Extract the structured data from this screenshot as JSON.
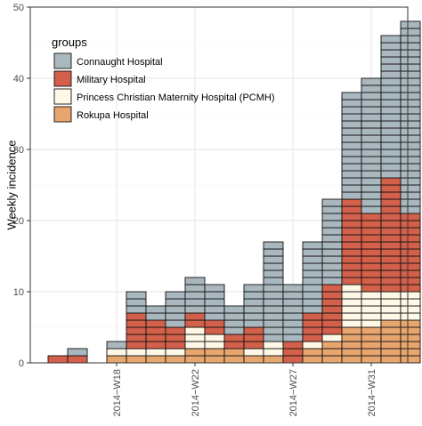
{
  "chart_data": {
    "type": "bar",
    "stacked": true,
    "unit_blocks": true,
    "title": "",
    "xlabel": "",
    "ylabel": "Weekly incidence",
    "ylim": [
      0,
      50
    ],
    "yticks": [
      0,
      10,
      20,
      30,
      40,
      50
    ],
    "grid": true,
    "legend": {
      "title": "groups",
      "position": "top-left"
    },
    "categories": [
      "2014-W15",
      "2014-W16",
      "2014-W17",
      "2014-W18",
      "2014-W19",
      "2014-W20",
      "2014-W21",
      "2014-W22",
      "2014-W23",
      "2014-W24",
      "2014-W25",
      "2014-W26",
      "2014-W27",
      "2014-W28",
      "2014-W29",
      "2014-W30",
      "2014-W31",
      "2014-W32",
      "2014-W33"
    ],
    "x_tick_labels": [
      {
        "category": "2014-W18",
        "label": "2014−W18"
      },
      {
        "category": "2014-W22",
        "label": "2014−W22"
      },
      {
        "category": "2014-W27",
        "label": "2014−W27"
      },
      {
        "category": "2014-W31",
        "label": "2014−W31"
      }
    ],
    "series": [
      {
        "name": "Rokupa Hospital",
        "color": "#E8A66F",
        "values": [
          0,
          0,
          0,
          1,
          1,
          1,
          1,
          2,
          2,
          2,
          1,
          1,
          0,
          2,
          3,
          5,
          5,
          6,
          6
        ]
      },
      {
        "name": "Princess Christian Maternity Hospital (PCMH)",
        "color": "#FFF8E6",
        "values": [
          0,
          0,
          0,
          1,
          1,
          1,
          1,
          3,
          2,
          0,
          1,
          2,
          0,
          1,
          1,
          6,
          5,
          4,
          4
        ]
      },
      {
        "name": "Military Hospital",
        "color": "#D2604A",
        "values": [
          1,
          1,
          0,
          0,
          5,
          4,
          3,
          2,
          2,
          2,
          3,
          0,
          3,
          4,
          7,
          12,
          11,
          16,
          11
        ]
      },
      {
        "name": "Connaught Hospital",
        "color": "#A9B8BE",
        "values": [
          0,
          1,
          0,
          1,
          3,
          2,
          5,
          5,
          5,
          4,
          6,
          14,
          8,
          10,
          12,
          15,
          19,
          20,
          27
        ]
      }
    ],
    "stack_order": [
      "Rokupa Hospital",
      "Princess Christian Maternity Hospital (PCMH)",
      "Military Hospital",
      "Connaught Hospital"
    ],
    "legend_order": [
      "Connaught Hospital",
      "Military Hospital",
      "Princess Christian Maternity Hospital (PCMH)",
      "Rokupa Hospital"
    ]
  }
}
